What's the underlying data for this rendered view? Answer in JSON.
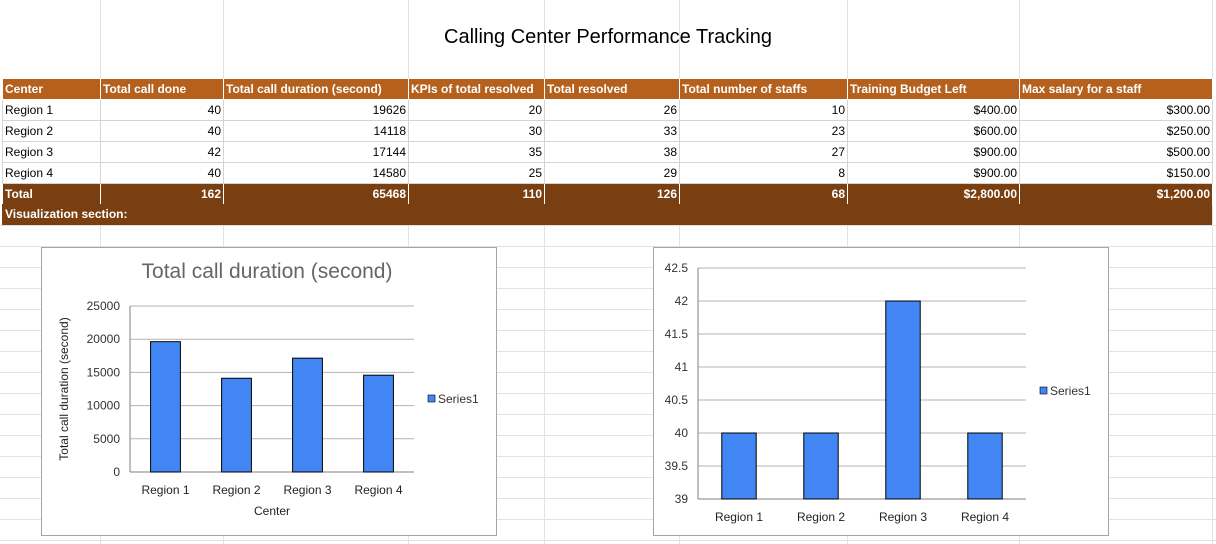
{
  "sheet": {
    "title": "Calling Center Performance Tracking",
    "headers": [
      "Center",
      "Total call done",
      "Total call duration (second)",
      "KPIs of total resolved",
      "Total resolved",
      "Total number of staffs",
      "Training Budget Left",
      "Max salary for a staff"
    ],
    "rows": [
      [
        "Region 1",
        "40",
        "19626",
        "20",
        "26",
        "10",
        "$400.00",
        "$300.00"
      ],
      [
        "Region 2",
        "40",
        "14118",
        "30",
        "33",
        "23",
        "$600.00",
        "$250.00"
      ],
      [
        "Region 3",
        "42",
        "17144",
        "35",
        "38",
        "27",
        "$900.00",
        "$500.00"
      ],
      [
        "Region 4",
        "40",
        "14580",
        "25",
        "29",
        "8",
        "$900.00",
        "$150.00"
      ]
    ],
    "total": [
      "Total",
      "162",
      "65468",
      "110",
      "126",
      "68",
      "$2,800.00",
      "$1,200.00"
    ],
    "visualization_label": "Visualization section:"
  },
  "colors": {
    "header_bg": "#b5611d",
    "total_bg": "#7a3f10",
    "bar": "#4286f4"
  },
  "chart_data": [
    {
      "type": "bar",
      "title": "Total call duration (second)",
      "xlabel": "Center",
      "ylabel": "Total call duration (second)",
      "categories": [
        "Region 1",
        "Region 2",
        "Region 3",
        "Region 4"
      ],
      "series": [
        {
          "name": "Series1",
          "values": [
            19626,
            14118,
            17144,
            14580
          ]
        }
      ],
      "ylim": [
        0,
        25000
      ],
      "yticks": [
        0,
        5000,
        10000,
        15000,
        20000,
        25000
      ],
      "grid": true,
      "legend": "right"
    },
    {
      "type": "bar",
      "title": "",
      "xlabel": "",
      "ylabel": "",
      "categories": [
        "Region 1",
        "Region 2",
        "Region 3",
        "Region 4"
      ],
      "series": [
        {
          "name": "Series1",
          "values": [
            40,
            40,
            42,
            40
          ]
        }
      ],
      "ylim": [
        39,
        42.5
      ],
      "yticks": [
        39,
        39.5,
        40,
        40.5,
        41,
        41.5,
        42,
        42.5
      ],
      "grid": true,
      "legend": "right"
    }
  ]
}
